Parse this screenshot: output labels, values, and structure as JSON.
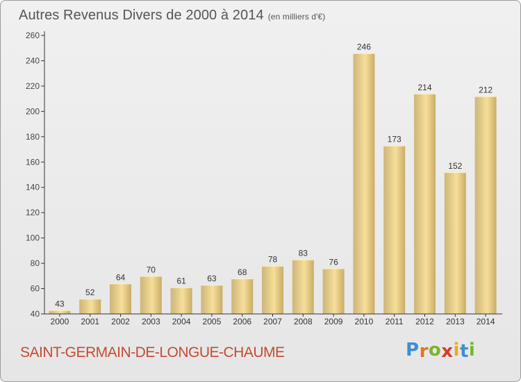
{
  "header": {
    "title": "Autres Revenus Divers de 2000 à 2014",
    "unit": "(en milliers d'€)"
  },
  "footer": {
    "commune": "SAINT-GERMAIN-DE-LONGUE-CHAUME",
    "brand_letters": [
      "P",
      "r",
      "o",
      "x",
      "i",
      "t",
      "i"
    ],
    "brand_colors": [
      "#3b8fd6",
      "#e8731f",
      "#7bb52a",
      "#d83a2e",
      "#f2a81d",
      "#3b8fd6",
      "#7bb52a"
    ]
  },
  "colors": {
    "bar_light": "#f7df9a",
    "bar_dark": "#c9ad68",
    "axis": "#333333",
    "grid": "#cfcfcf"
  },
  "chart_data": {
    "type": "bar",
    "title": "Autres Revenus Divers de 2000 à 2014",
    "categories": [
      "2000",
      "2001",
      "2002",
      "2003",
      "2004",
      "2005",
      "2006",
      "2007",
      "2008",
      "2009",
      "2010",
      "2011",
      "2012",
      "2013",
      "2014"
    ],
    "values": [
      43,
      52,
      64,
      70,
      61,
      63,
      68,
      78,
      83,
      76,
      246,
      173,
      214,
      152,
      212
    ],
    "ylim": [
      40,
      260
    ],
    "yticks": [
      40,
      60,
      80,
      100,
      120,
      140,
      160,
      180,
      200,
      220,
      240,
      260
    ],
    "xlabel": "",
    "ylabel": "",
    "grid": false
  }
}
